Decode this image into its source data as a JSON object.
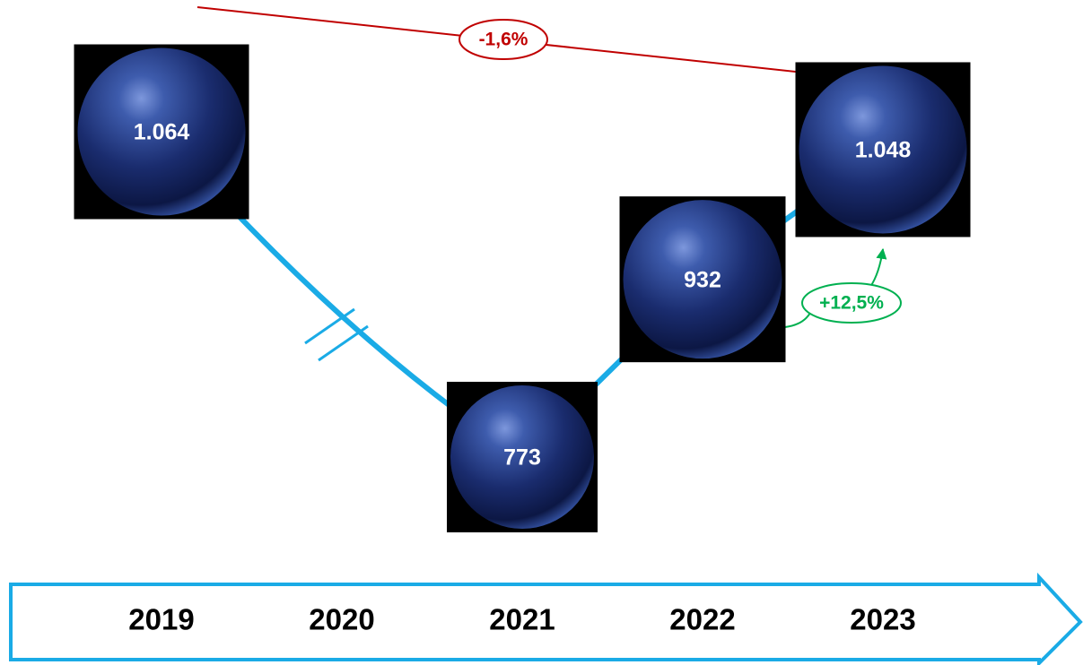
{
  "chart_data": {
    "type": "line",
    "categories": [
      "2019",
      "2020",
      "2021",
      "2022",
      "2023"
    ],
    "series": [
      {
        "color": "#1aabe6",
        "values": [
          1064,
          null,
          773,
          932,
          1048
        ],
        "value_labels": [
          "1.064",
          null,
          "773",
          "932",
          "1.048"
        ]
      }
    ],
    "annotations": [
      {
        "text": "-1,6%",
        "color": "#c00000"
      },
      {
        "text": "+12,5%",
        "color": "#00b050"
      }
    ]
  }
}
